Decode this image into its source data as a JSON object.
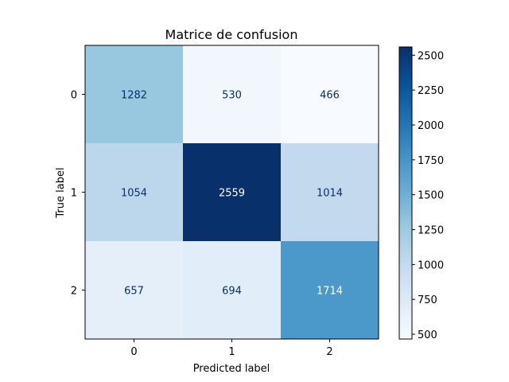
{
  "chart_data": {
    "type": "heatmap",
    "title": "Matrice de confusion",
    "xlabel": "Predicted label",
    "ylabel": "True label",
    "x_categories": [
      "0",
      "1",
      "2"
    ],
    "y_categories": [
      "0",
      "1",
      "2"
    ],
    "matrix": [
      [
        1282,
        530,
        466
      ],
      [
        1054,
        2559,
        1014
      ],
      [
        657,
        694,
        1714
      ]
    ],
    "colormap": "Blues",
    "vmin": 466,
    "vmax": 2559,
    "colorbar_ticks": [
      "500",
      "750",
      "1000",
      "1250",
      "1500",
      "1750",
      "2000",
      "2250",
      "2500"
    ],
    "text_color_light": "#ffffff",
    "text_color_dark": "#08306b",
    "grid": false
  }
}
